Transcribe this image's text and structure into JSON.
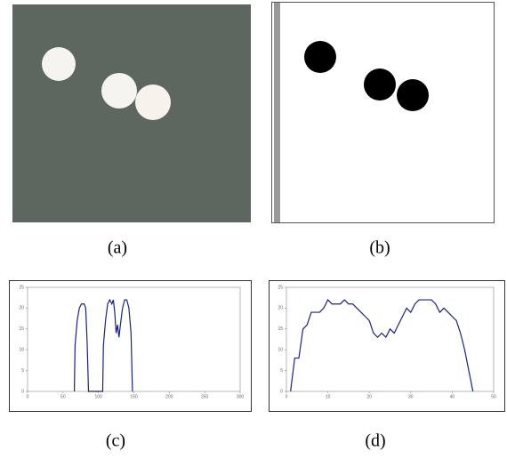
{
  "panels": [
    "(a)",
    "(b)",
    "(c)",
    "(d)"
  ],
  "chart_data": [
    {
      "type": "line",
      "xlim": [
        0,
        300
      ],
      "xticks": [
        0,
        50,
        100,
        150,
        200,
        250,
        300
      ],
      "ylim": [
        0,
        25
      ],
      "yticks": [
        0,
        5,
        10,
        15,
        20,
        25
      ],
      "x": [
        66,
        67,
        70,
        73,
        76,
        80,
        82,
        84,
        86,
        106,
        107,
        110,
        113,
        116,
        119,
        121,
        123,
        125,
        127,
        129,
        131,
        134,
        137,
        140,
        143,
        146,
        148
      ],
      "values": [
        0,
        11,
        17,
        20,
        21,
        21,
        20,
        12,
        0,
        0,
        11,
        17,
        21,
        22,
        21,
        22,
        19,
        14,
        16,
        13,
        16,
        20,
        22,
        22,
        20,
        14,
        0
      ],
      "color": "#1a237e"
    },
    {
      "type": "line",
      "xlim": [
        0,
        50
      ],
      "xticks": [
        0,
        10,
        20,
        30,
        40,
        50
      ],
      "ylim": [
        0,
        25
      ],
      "yticks": [
        0,
        5,
        10,
        15,
        20,
        25
      ],
      "x": [
        1,
        2,
        3,
        4,
        5,
        6,
        7,
        8,
        9,
        10,
        11,
        12,
        13,
        14,
        15,
        16,
        17,
        18,
        19,
        20,
        21,
        22,
        23,
        24,
        25,
        26,
        27,
        28,
        29,
        30,
        31,
        32,
        33,
        34,
        35,
        36,
        37,
        38,
        39,
        40,
        41,
        42,
        43,
        44,
        45
      ],
      "values": [
        0,
        8,
        8,
        15,
        16,
        19,
        19,
        19,
        20,
        22,
        21,
        21,
        21,
        22,
        21,
        21,
        20,
        19,
        18,
        17,
        14,
        13,
        14,
        13,
        15,
        14,
        16,
        18,
        20,
        19,
        21,
        22,
        22,
        22,
        22,
        21,
        19,
        20,
        19,
        18,
        17,
        14,
        10,
        5,
        0
      ],
      "color": "#1a237e"
    }
  ]
}
